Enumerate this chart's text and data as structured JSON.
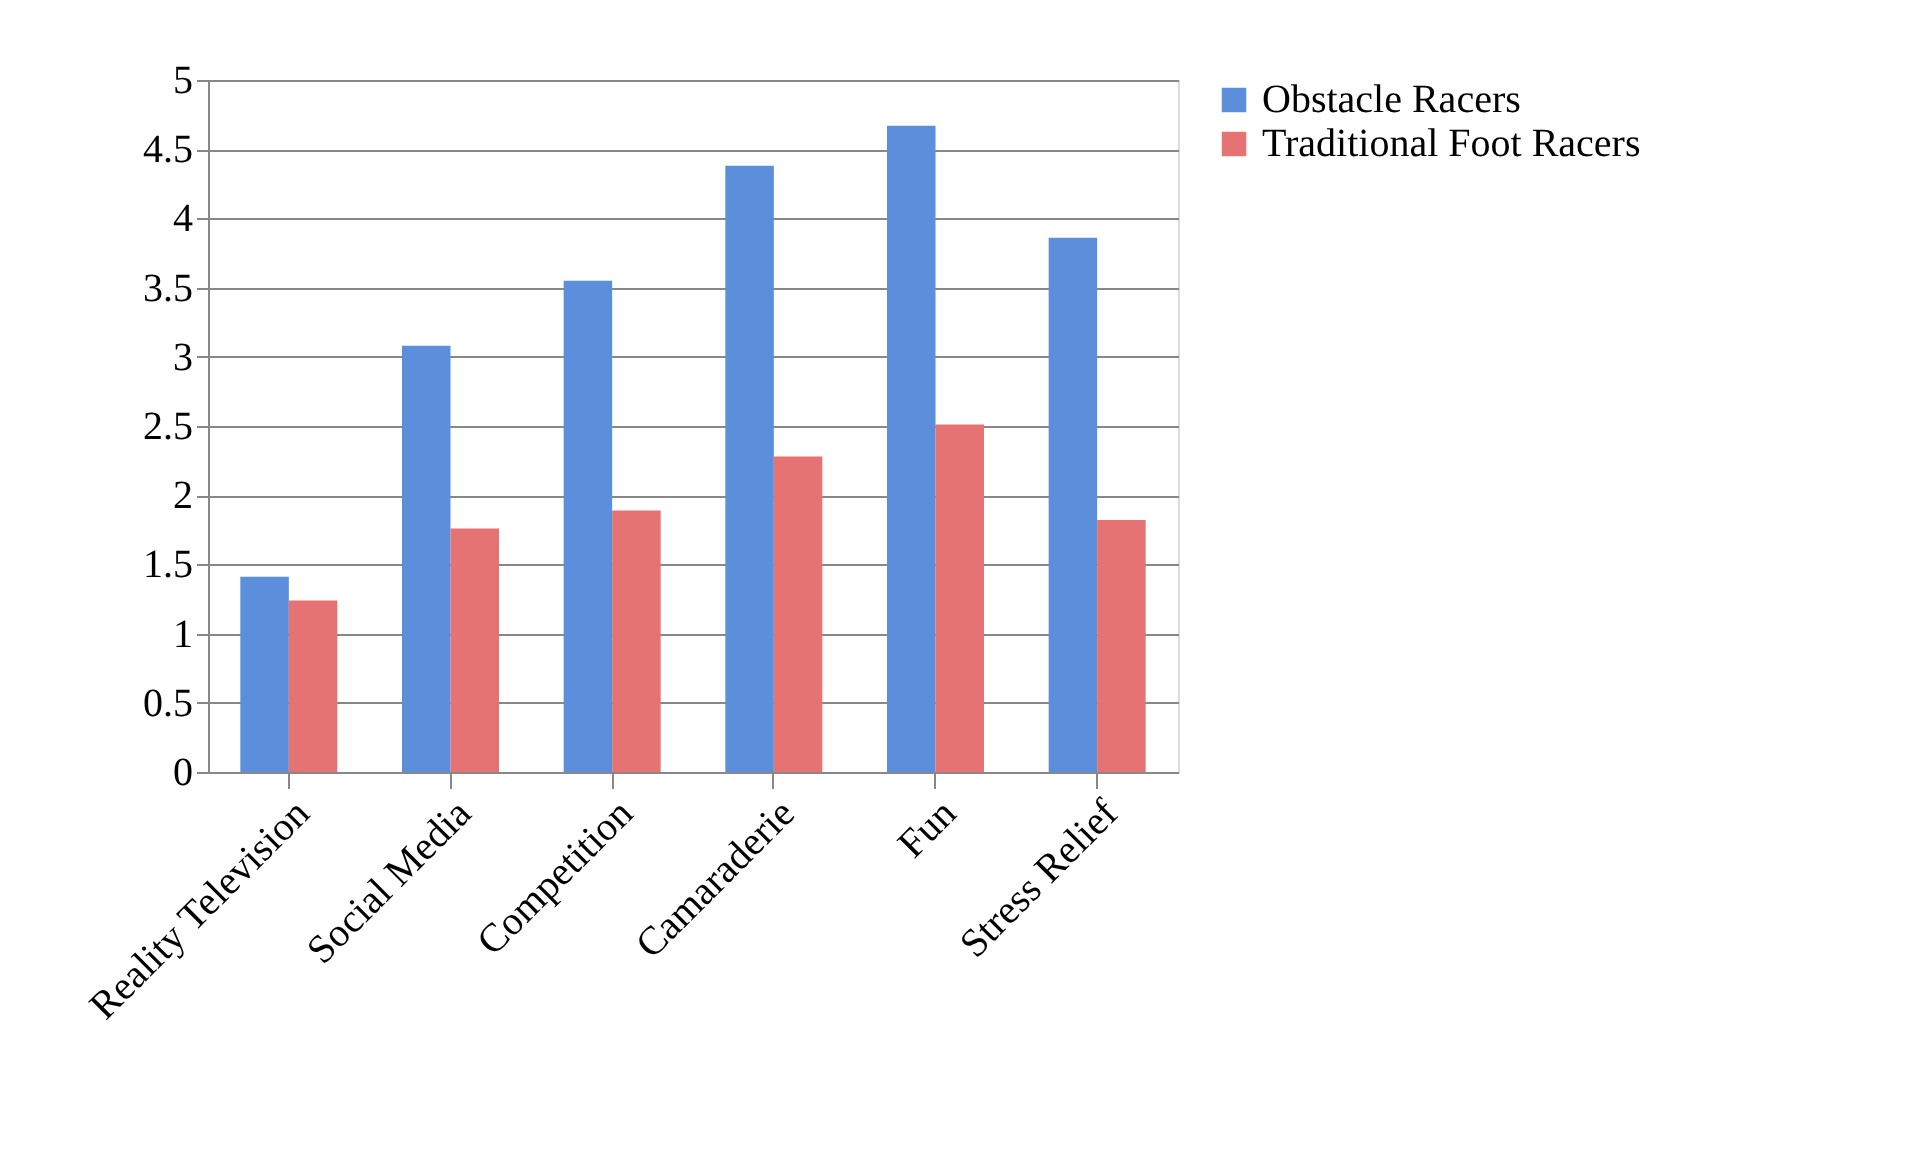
{
  "chart_data": {
    "type": "bar",
    "categories": [
      "Reality Television",
      "Social Media",
      "Competition",
      "Camaraderie",
      "Fun",
      "Stress Relief"
    ],
    "series": [
      {
        "name": "Obstacle Racers",
        "color": "#5b8fdc",
        "values": [
          1.41,
          3.08,
          3.55,
          4.38,
          4.67,
          3.86
        ]
      },
      {
        "name": "Traditional Foot Racers",
        "color": "#e57373",
        "values": [
          1.24,
          1.76,
          1.89,
          2.28,
          2.51,
          1.82
        ]
      }
    ],
    "ylim": [
      0,
      5
    ],
    "yticks": [
      0,
      0.5,
      1,
      1.5,
      2,
      2.5,
      3,
      3.5,
      4,
      4.5,
      5
    ],
    "grid": "y",
    "legend": "right"
  }
}
